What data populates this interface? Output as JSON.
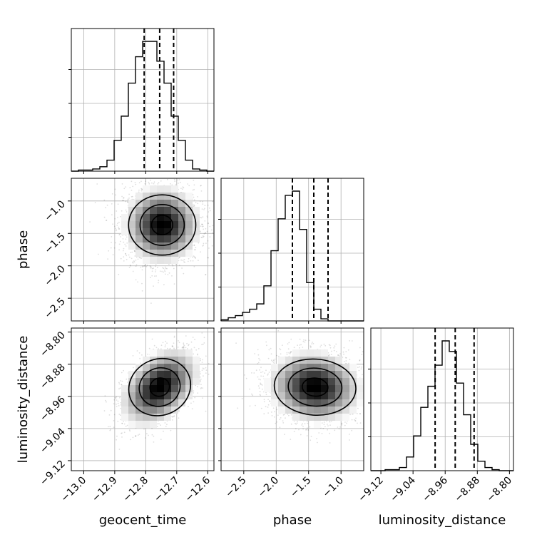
{
  "chart_data": {
    "type": "corner",
    "parameters": [
      "geocent_time",
      "phase",
      "luminosity_distance"
    ],
    "grid": true,
    "ranges": {
      "geocent_time": [
        -13.04,
        -12.58
      ],
      "phase": [
        -2.85,
        -0.65
      ],
      "luminosity_distance": [
        -9.145,
        -8.79
      ]
    },
    "ticks": {
      "geocent_time": [
        -13.0,
        -12.9,
        -12.8,
        -12.7,
        -12.6
      ],
      "phase": [
        -2.5,
        -2.0,
        -1.5,
        -1.0
      ],
      "luminosity_distance": [
        -9.12,
        -9.04,
        -8.96,
        -8.88,
        -8.8
      ]
    },
    "tick_labels": {
      "geocent_time": [
        "−13.0",
        "−12.9",
        "−12.8",
        "−12.7",
        "−12.6"
      ],
      "phase": [
        "−2.5",
        "−2.0",
        "−1.5",
        "−1.0"
      ],
      "luminosity_distance": [
        "−9.12",
        "−9.04",
        "−8.96",
        "−8.88",
        "−8.80"
      ]
    },
    "quantiles": {
      "geocent_time": [
        -12.805,
        -12.755,
        -12.71
      ],
      "phase": [
        -1.75,
        -1.42,
        -1.2
      ],
      "luminosity_distance": [
        -8.985,
        -8.935,
        -8.888
      ]
    },
    "histograms": {
      "geocent_time": [
        0,
        1,
        1,
        2,
        4,
        10,
        28,
        50,
        80,
        104,
        118,
        118,
        100,
        80,
        50,
        28,
        10,
        2,
        1,
        0
      ],
      "phase": [
        1,
        3,
        5,
        8,
        11,
        16,
        33,
        66,
        96,
        118,
        122,
        86,
        36,
        11,
        2,
        0,
        0,
        0,
        0,
        0
      ],
      "luminosity_distance": [
        0,
        0,
        1,
        1,
        3,
        13,
        33,
        60,
        80,
        100,
        123,
        113,
        83,
        53,
        25,
        9,
        3,
        1,
        0,
        0
      ]
    },
    "pairs": [
      {
        "x": "geocent_time",
        "y": "phase",
        "peak": [
          -12.747,
          -1.37
        ],
        "sd": [
          0.062,
          0.3
        ],
        "rho": 0.0
      },
      {
        "x": "geocent_time",
        "y": "luminosity_distance",
        "peak": [
          -12.755,
          -8.937
        ],
        "sd": [
          0.058,
          0.045
        ],
        "rho": 0.5
      },
      {
        "x": "phase",
        "y": "luminosity_distance",
        "peak": [
          -1.4,
          -8.937
        ],
        "sd": [
          0.36,
          0.045
        ],
        "rho": -0.1
      }
    ]
  }
}
